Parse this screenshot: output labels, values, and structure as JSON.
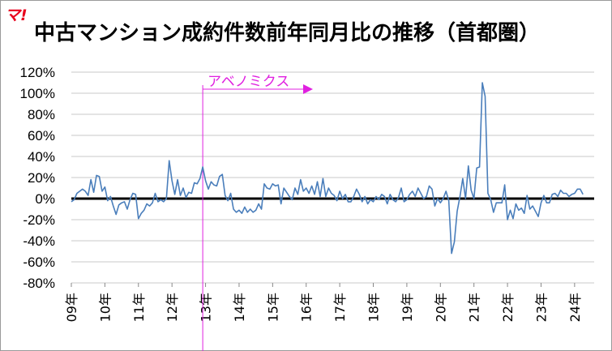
{
  "logo_text": "マ!",
  "chart_data": {
    "type": "line",
    "title": "中古マンション成約件数前年同月比の推移（首都圏）",
    "xlabel": "",
    "ylabel": "",
    "ylim": [
      -80,
      120
    ],
    "y_ticks": [
      "120%",
      "100%",
      "80%",
      "60%",
      "40%",
      "20%",
      "0%",
      "-20%",
      "-40%",
      "-60%",
      "-80%"
    ],
    "x_ticks": [
      "09年",
      "10年",
      "11年",
      "12年",
      "13年",
      "14年",
      "15年",
      "16年",
      "17年",
      "18年",
      "19年",
      "20年",
      "21年",
      "22年",
      "23年",
      "24年"
    ],
    "x_start": "2009-01",
    "x_end": "2024-08",
    "grid": true,
    "annotation": {
      "text": "アベノミクス",
      "date": "2012-12",
      "color": "#e020e0"
    },
    "series": [
      {
        "name": "",
        "color": "#4a7ebb",
        "values": [
          -3,
          -1,
          5,
          7,
          9,
          7,
          3,
          18,
          6,
          22,
          21,
          7,
          11,
          -2,
          2,
          -7,
          -15,
          -6,
          -4,
          -3,
          -10,
          -1,
          5,
          4,
          -19,
          -14,
          -11,
          -5,
          -7,
          -4,
          5,
          -3,
          -1,
          -3,
          0,
          36,
          17,
          4,
          18,
          3,
          10,
          1,
          6,
          5,
          15,
          14,
          19,
          30,
          17,
          9,
          16,
          13,
          12,
          21,
          23,
          3,
          -2,
          5,
          -10,
          -13,
          -11,
          -14,
          -8,
          -13,
          -10,
          -13,
          -11,
          -5,
          -10,
          14,
          10,
          9,
          14,
          12,
          13,
          -5,
          10,
          6,
          2,
          -1,
          10,
          4,
          18,
          7,
          10,
          5,
          12,
          4,
          16,
          2,
          19,
          2,
          10,
          5,
          3,
          -2,
          7,
          0,
          4,
          -3,
          -3,
          2,
          9,
          4,
          -3,
          2,
          -5,
          -1,
          -3,
          2,
          -1,
          4,
          2,
          -5,
          4,
          -1,
          -3,
          1,
          10,
          -3,
          -1,
          4,
          7,
          2,
          10,
          5,
          0,
          2,
          12,
          9,
          -7,
          0,
          -4,
          0,
          7,
          -2,
          -52,
          -41,
          -12,
          2,
          19,
          0,
          31,
          8,
          0,
          29,
          30,
          110,
          97,
          5,
          -1,
          -13,
          -4,
          -4,
          -4,
          13,
          -20,
          -11,
          -19,
          -5,
          -11,
          -9,
          -14,
          3,
          -10,
          -7,
          -12,
          -17,
          -4,
          3,
          -4,
          -4,
          4,
          5,
          2,
          8,
          5,
          5,
          2,
          4,
          5,
          9,
          9,
          4
        ]
      }
    ]
  }
}
